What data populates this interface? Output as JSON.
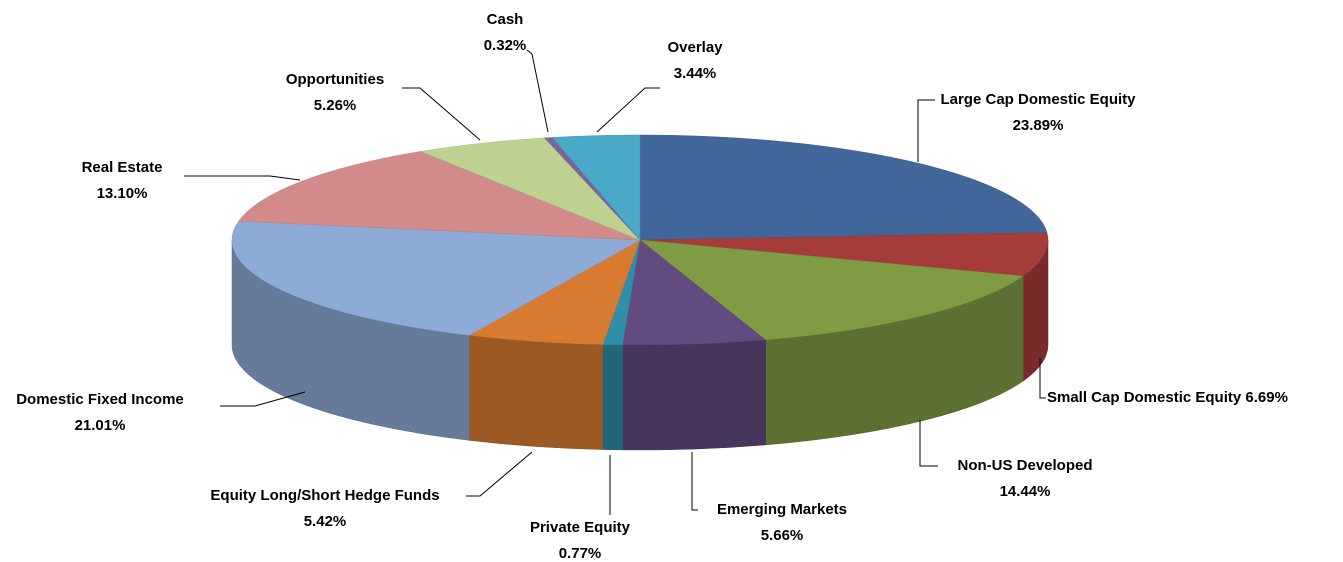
{
  "chart_data": {
    "type": "pie",
    "categories": [
      "Large Cap Domestic Equity",
      "Small Cap Domestic Equity",
      "Non-US Developed",
      "Emerging Markets",
      "Private Equity",
      "Equity Long/Short Hedge Funds",
      "Domestic Fixed Income",
      "Real Estate",
      "Opportunities",
      "Cash",
      "Overlay"
    ],
    "values": [
      23.89,
      6.69,
      14.44,
      5.66,
      0.77,
      5.42,
      21.01,
      13.1,
      5.26,
      0.32,
      3.44
    ],
    "value_labels": [
      "23.89%",
      "6.69%",
      "14.44%",
      "5.66%",
      "0.77%",
      "5.42%",
      "21.01%",
      "13.10%",
      "5.26%",
      "0.32%",
      "3.44%"
    ],
    "colors": [
      "#41669a",
      "#a63c3a",
      "#7f9c44",
      "#634a80",
      "#2f8ea8",
      "#d87b30",
      "#8eaad6",
      "#d28b8a",
      "#bdd190",
      "#7a6598",
      "#4aa9c7"
    ]
  }
}
